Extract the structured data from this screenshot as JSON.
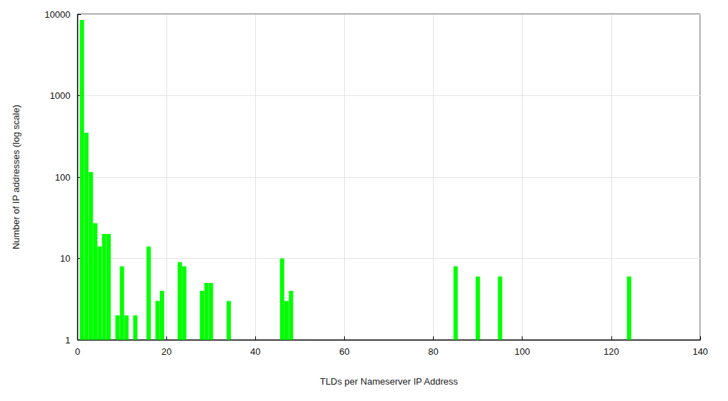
{
  "chart_data": {
    "type": "bar",
    "xlabel": "TLDs per Nameserver IP Address",
    "ylabel": "Number of IP addresses (log scale)",
    "x": [
      1,
      2,
      3,
      4,
      5,
      6,
      7,
      9,
      10,
      11,
      13,
      16,
      18,
      19,
      23,
      24,
      28,
      29,
      30,
      34,
      46,
      47,
      48,
      85,
      90,
      95,
      124
    ],
    "values": [
      8500,
      350,
      115,
      27,
      14,
      20,
      20,
      2,
      8,
      2,
      2,
      14,
      3,
      4,
      9,
      8,
      4,
      5,
      5,
      3,
      10,
      3,
      4,
      8,
      6,
      6,
      6
    ],
    "color": "#00ff00",
    "xlim": [
      0,
      140
    ],
    "xticks": [
      0,
      20,
      40,
      60,
      80,
      100,
      120,
      140
    ],
    "ylim": [
      1,
      10000
    ],
    "yticks": [
      1,
      10,
      100,
      1000,
      10000
    ],
    "log": "y",
    "grid": true
  }
}
